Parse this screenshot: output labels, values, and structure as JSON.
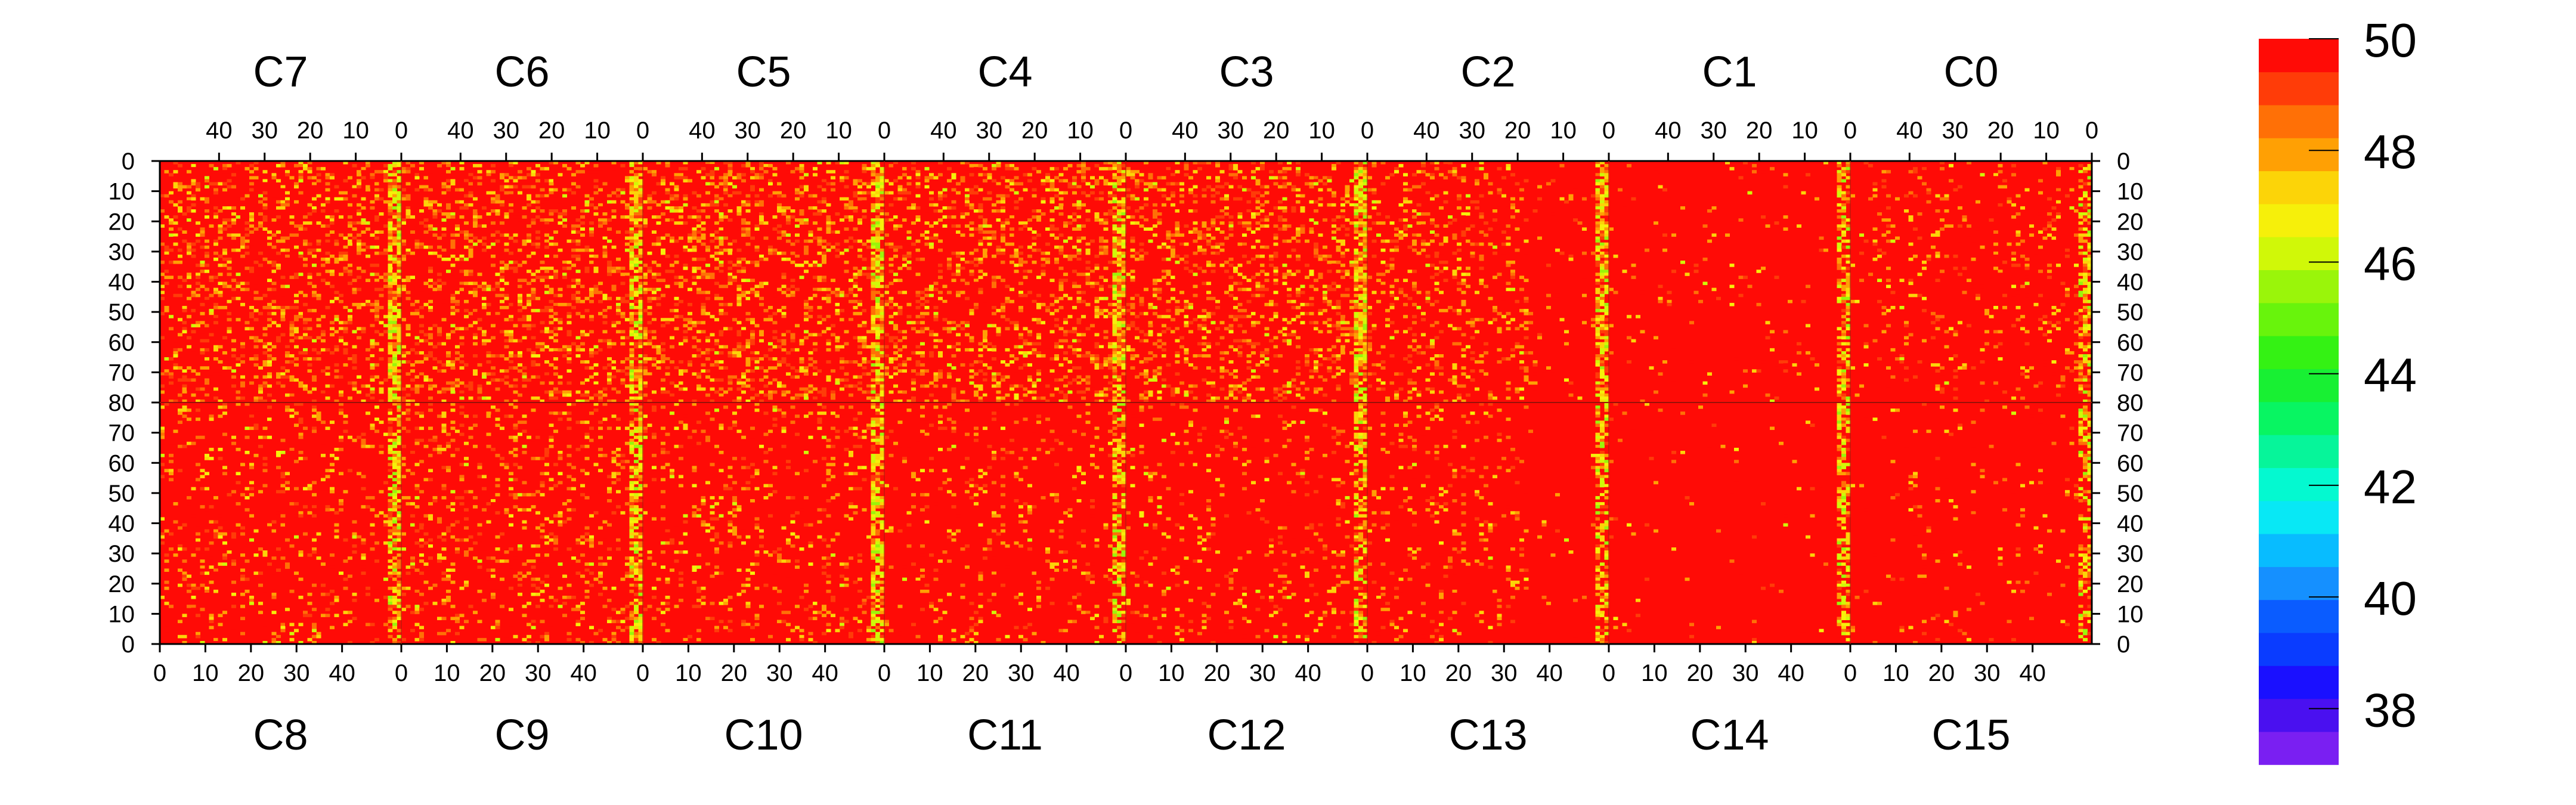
{
  "chart_data": {
    "type": "heatmap",
    "description_free": true,
    "top_groups": [
      "C7",
      "C6",
      "C5",
      "C4",
      "C3",
      "C2",
      "C1",
      "C0"
    ],
    "bottom_groups": [
      "C8",
      "C9",
      "C10",
      "C11",
      "C12",
      "C13",
      "C14",
      "C15"
    ],
    "top_x_ticks": [
      "40",
      "30",
      "20",
      "10",
      "0"
    ],
    "top_x_tick_values": [
      40,
      30,
      20,
      10,
      0
    ],
    "bottom_x_ticks": [
      "0",
      "10",
      "20",
      "30",
      "40"
    ],
    "bottom_x_tick_values": [
      0,
      10,
      20,
      30,
      40
    ],
    "x_range_per_group": [
      0,
      53
    ],
    "y_ticks_top_half": [
      "0",
      "10",
      "20",
      "30",
      "40",
      "50",
      "60",
      "70",
      "80"
    ],
    "y_ticks_bottom_half": [
      "70",
      "60",
      "50",
      "40",
      "30",
      "20",
      "10",
      "0"
    ],
    "y_range_per_half": [
      0,
      80
    ],
    "colorbar": {
      "range": [
        37,
        50
      ],
      "ticks": [
        "50",
        "48",
        "46",
        "44",
        "42",
        "40",
        "38"
      ],
      "tick_values": [
        50,
        48,
        46,
        44,
        42,
        40,
        38
      ],
      "colors": [
        "#7a1ff2",
        "#4a10f0",
        "#1a10ff",
        "#0a3cff",
        "#0a5cff",
        "#1590ff",
        "#08bcff",
        "#08e8f5",
        "#04f9d0",
        "#06f59a",
        "#08f562",
        "#18f033",
        "#34f214",
        "#68f40c",
        "#9af50a",
        "#d0f808",
        "#f6f00a",
        "#fcd408",
        "#ffa004",
        "#ff7006",
        "#ff3c08",
        "#ff0b06"
      ]
    },
    "dominant_value": 50,
    "columns": [
      {
        "name": "C7",
        "typical_min": 45,
        "note_low_columns": [
          0,
          1,
          2
        ]
      },
      {
        "name": "C6",
        "typical_min": 46
      },
      {
        "name": "C5",
        "typical_min": 45
      },
      {
        "name": "C4",
        "typical_min": 46
      },
      {
        "name": "C3",
        "typical_min": 45
      },
      {
        "name": "C2",
        "typical_min": 47
      },
      {
        "name": "C1",
        "typical_min": 49
      },
      {
        "name": "C0",
        "typical_min": 47
      }
    ]
  }
}
